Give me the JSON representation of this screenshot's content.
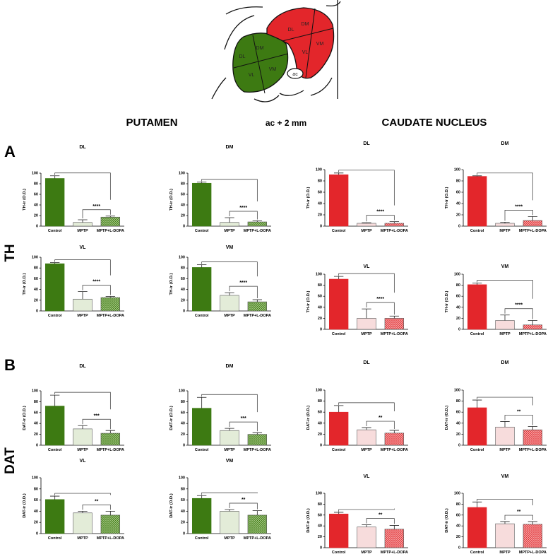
{
  "headers": {
    "putamen": "PUTAMEN",
    "level": "ac + 2 mm",
    "caudate": "CAUDATE NUCLEUS"
  },
  "panels": {
    "a": "A",
    "b": "B"
  },
  "rows": {
    "th": "TH",
    "dat": "DAT"
  },
  "diagram": {
    "putamen_regions": [
      "DL",
      "DM",
      "VL",
      "VM"
    ],
    "caudate_regions": [
      "DL",
      "DM",
      "VL",
      "VM"
    ],
    "landmark": "ac"
  },
  "chart_data": [
    {
      "type": "bar",
      "title": "DL",
      "ylabel": "TH-ir (O.D.)",
      "categories": [
        "Control",
        "MPTP",
        "MPTP+L-DOPA"
      ],
      "values": [
        90,
        7,
        17
      ],
      "errors": [
        5,
        5,
        2
      ],
      "colors": [
        "#3d7a12",
        "#e3ecd8",
        "#a9c98a"
      ],
      "hatch": [
        false,
        false,
        true
      ],
      "ylim": [
        0,
        100
      ],
      "yticks": [
        0,
        20,
        40,
        60,
        80,
        100
      ],
      "significance": "****"
    },
    {
      "type": "bar",
      "title": "DM",
      "ylabel": "TH-ir (O.D.)",
      "categories": [
        "Control",
        "MPTP",
        "MPTP+L-DOPA"
      ],
      "values": [
        81,
        7,
        8
      ],
      "errors": [
        2,
        9,
        2
      ],
      "colors": [
        "#3d7a12",
        "#e3ecd8",
        "#a9c98a"
      ],
      "hatch": [
        false,
        false,
        true
      ],
      "ylim": [
        0,
        100
      ],
      "yticks": [
        0,
        20,
        40,
        60,
        80,
        100
      ],
      "significance": "****"
    },
    {
      "type": "bar",
      "title": "DL",
      "ylabel": "TH-ir (O.D.)",
      "categories": [
        "Control",
        "MPTP",
        "MPTP+L-DOPA"
      ],
      "values": [
        91,
        5,
        5
      ],
      "errors": [
        3,
        1,
        3
      ],
      "colors": [
        "#e3262b",
        "#f7dcdc",
        "#f4b3b3"
      ],
      "hatch": [
        false,
        false,
        true
      ],
      "ylim": [
        0,
        100
      ],
      "yticks": [
        0,
        20,
        40,
        60,
        80,
        100
      ],
      "significance": "****"
    },
    {
      "type": "bar",
      "title": "DM",
      "ylabel": "TH-ir (O.D.)",
      "categories": [
        "Control",
        "MPTP",
        "MPTP+L-DOPA"
      ],
      "values": [
        88,
        5,
        10
      ],
      "errors": [
        1,
        2,
        7
      ],
      "colors": [
        "#e3262b",
        "#f7dcdc",
        "#f4b3b3"
      ],
      "hatch": [
        false,
        false,
        true
      ],
      "ylim": [
        0,
        100
      ],
      "yticks": [
        0,
        20,
        40,
        60,
        80,
        100
      ],
      "significance": "****"
    },
    {
      "type": "bar",
      "title": "VL",
      "ylabel": "TH-ir (O.D.)",
      "categories": [
        "Control",
        "MPTP",
        "MPTP+L-DOPA"
      ],
      "values": [
        88,
        22,
        25
      ],
      "errors": [
        2,
        14,
        2
      ],
      "colors": [
        "#3d7a12",
        "#e3ecd8",
        "#a9c98a"
      ],
      "hatch": [
        false,
        false,
        true
      ],
      "ylim": [
        0,
        100
      ],
      "yticks": [
        0,
        20,
        40,
        60,
        80,
        100
      ],
      "significance": "****"
    },
    {
      "type": "bar",
      "title": "VM",
      "ylabel": "TH-ir (O.D.)",
      "categories": [
        "Control",
        "MPTP",
        "MPTP+L-DOPA"
      ],
      "values": [
        81,
        29,
        17
      ],
      "errors": [
        5,
        5,
        4
      ],
      "colors": [
        "#3d7a12",
        "#e3ecd8",
        "#a9c98a"
      ],
      "hatch": [
        false,
        false,
        true
      ],
      "ylim": [
        0,
        100
      ],
      "yticks": [
        0,
        20,
        40,
        60,
        80,
        100
      ],
      "significance": "****"
    },
    {
      "type": "bar",
      "title": "VL",
      "ylabel": "TH-ir (O.D.)",
      "categories": [
        "Control",
        "MPTP",
        "MPTP+L-DOPA"
      ],
      "values": [
        91,
        20,
        20
      ],
      "errors": [
        5,
        17,
        4
      ],
      "colors": [
        "#e3262b",
        "#f7dcdc",
        "#f4b3b3"
      ],
      "hatch": [
        false,
        false,
        true
      ],
      "ylim": [
        0,
        100
      ],
      "yticks": [
        0,
        20,
        40,
        60,
        80,
        100
      ],
      "significance": "****"
    },
    {
      "type": "bar",
      "title": "VM",
      "ylabel": "TH-ir (O.D.)",
      "categories": [
        "Control",
        "MPTP",
        "MPTP+L-DOPA"
      ],
      "values": [
        81,
        16,
        8
      ],
      "errors": [
        3,
        10,
        8
      ],
      "colors": [
        "#e3262b",
        "#f7dcdc",
        "#f4b3b3"
      ],
      "hatch": [
        false,
        false,
        true
      ],
      "ylim": [
        0,
        100
      ],
      "yticks": [
        0,
        20,
        40,
        60,
        80,
        100
      ],
      "significance": "****"
    },
    {
      "type": "bar",
      "title": "DL",
      "ylabel": "DAT-ir (O.D.)",
      "categories": [
        "Control",
        "MPTP",
        "MPTP+L-DOPA"
      ],
      "values": [
        72,
        30,
        22
      ],
      "errors": [
        20,
        6,
        5
      ],
      "colors": [
        "#3d7a12",
        "#e3ecd8",
        "#a9c98a"
      ],
      "hatch": [
        false,
        false,
        true
      ],
      "ylim": [
        0,
        100
      ],
      "yticks": [
        0,
        20,
        40,
        60,
        80,
        100
      ],
      "significance": "***"
    },
    {
      "type": "bar",
      "title": "DM",
      "ylabel": "DAT-ir (O.D.)",
      "categories": [
        "Control",
        "MPTP",
        "MPTP+L-DOPA"
      ],
      "values": [
        68,
        27,
        20
      ],
      "errors": [
        20,
        4,
        3
      ],
      "colors": [
        "#3d7a12",
        "#e3ecd8",
        "#a9c98a"
      ],
      "hatch": [
        false,
        false,
        true
      ],
      "ylim": [
        0,
        100
      ],
      "yticks": [
        0,
        20,
        40,
        60,
        80,
        100
      ],
      "significance": "***"
    },
    {
      "type": "bar",
      "title": "DL",
      "ylabel": "DAT-ir (O.D.)",
      "categories": [
        "Control",
        "MPTP",
        "MPTP+L-DOPA"
      ],
      "values": [
        60,
        28,
        22
      ],
      "errors": [
        12,
        4,
        5
      ],
      "colors": [
        "#e3262b",
        "#f7dcdc",
        "#f4b3b3"
      ],
      "hatch": [
        false,
        false,
        true
      ],
      "ylim": [
        0,
        100
      ],
      "yticks": [
        0,
        20,
        40,
        60,
        80,
        100
      ],
      "significance": "**"
    },
    {
      "type": "bar",
      "title": "DM",
      "ylabel": "DAT-ir (O.D.)",
      "categories": [
        "Control",
        "MPTP",
        "MPTP+L-DOPA"
      ],
      "values": [
        68,
        33,
        28
      ],
      "errors": [
        14,
        10,
        6
      ],
      "colors": [
        "#e3262b",
        "#f7dcdc",
        "#f4b3b3"
      ],
      "hatch": [
        false,
        false,
        true
      ],
      "ylim": [
        0,
        100
      ],
      "yticks": [
        0,
        20,
        40,
        60,
        80,
        100
      ],
      "significance": "**"
    },
    {
      "type": "bar",
      "title": "VL",
      "ylabel": "DAT-ir (O.D.)",
      "categories": [
        "Control",
        "MPTP",
        "MPTP+L-DOPA"
      ],
      "values": [
        61,
        37,
        33
      ],
      "errors": [
        6,
        3,
        7
      ],
      "colors": [
        "#3d7a12",
        "#e3ecd8",
        "#a9c98a"
      ],
      "hatch": [
        false,
        false,
        true
      ],
      "ylim": [
        0,
        100
      ],
      "yticks": [
        0,
        20,
        40,
        60,
        80,
        100
      ],
      "significance": "**"
    },
    {
      "type": "bar",
      "title": "VM",
      "ylabel": "DAT-ir (O.D.)",
      "categories": [
        "Control",
        "MPTP",
        "MPTP+L-DOPA"
      ],
      "values": [
        63,
        40,
        33
      ],
      "errors": [
        5,
        3,
        8
      ],
      "colors": [
        "#3d7a12",
        "#e3ecd8",
        "#a9c98a"
      ],
      "hatch": [
        false,
        false,
        true
      ],
      "ylim": [
        0,
        100
      ],
      "yticks": [
        0,
        20,
        40,
        60,
        80,
        100
      ],
      "significance": "**"
    },
    {
      "type": "bar",
      "title": "VL",
      "ylabel": "DAT-ir (O.D.)",
      "categories": [
        "Control",
        "MPTP",
        "MPTP+L-DOPA"
      ],
      "values": [
        62,
        38,
        34
      ],
      "errors": [
        3,
        4,
        7
      ],
      "colors": [
        "#e3262b",
        "#f7dcdc",
        "#f4b3b3"
      ],
      "hatch": [
        false,
        false,
        true
      ],
      "ylim": [
        0,
        100
      ],
      "yticks": [
        0,
        20,
        40,
        60,
        80,
        100
      ],
      "significance": "**"
    },
    {
      "type": "bar",
      "title": "VM",
      "ylabel": "DAT-ir (O.D.)",
      "categories": [
        "Control",
        "MPTP",
        "MPTP+L-DOPA"
      ],
      "values": [
        74,
        44,
        43
      ],
      "errors": [
        10,
        4,
        5
      ],
      "colors": [
        "#e3262b",
        "#f7dcdc",
        "#f4b3b3"
      ],
      "hatch": [
        false,
        false,
        true
      ],
      "ylim": [
        0,
        100
      ],
      "yticks": [
        0,
        20,
        40,
        60,
        80,
        100
      ],
      "significance": "**"
    }
  ]
}
